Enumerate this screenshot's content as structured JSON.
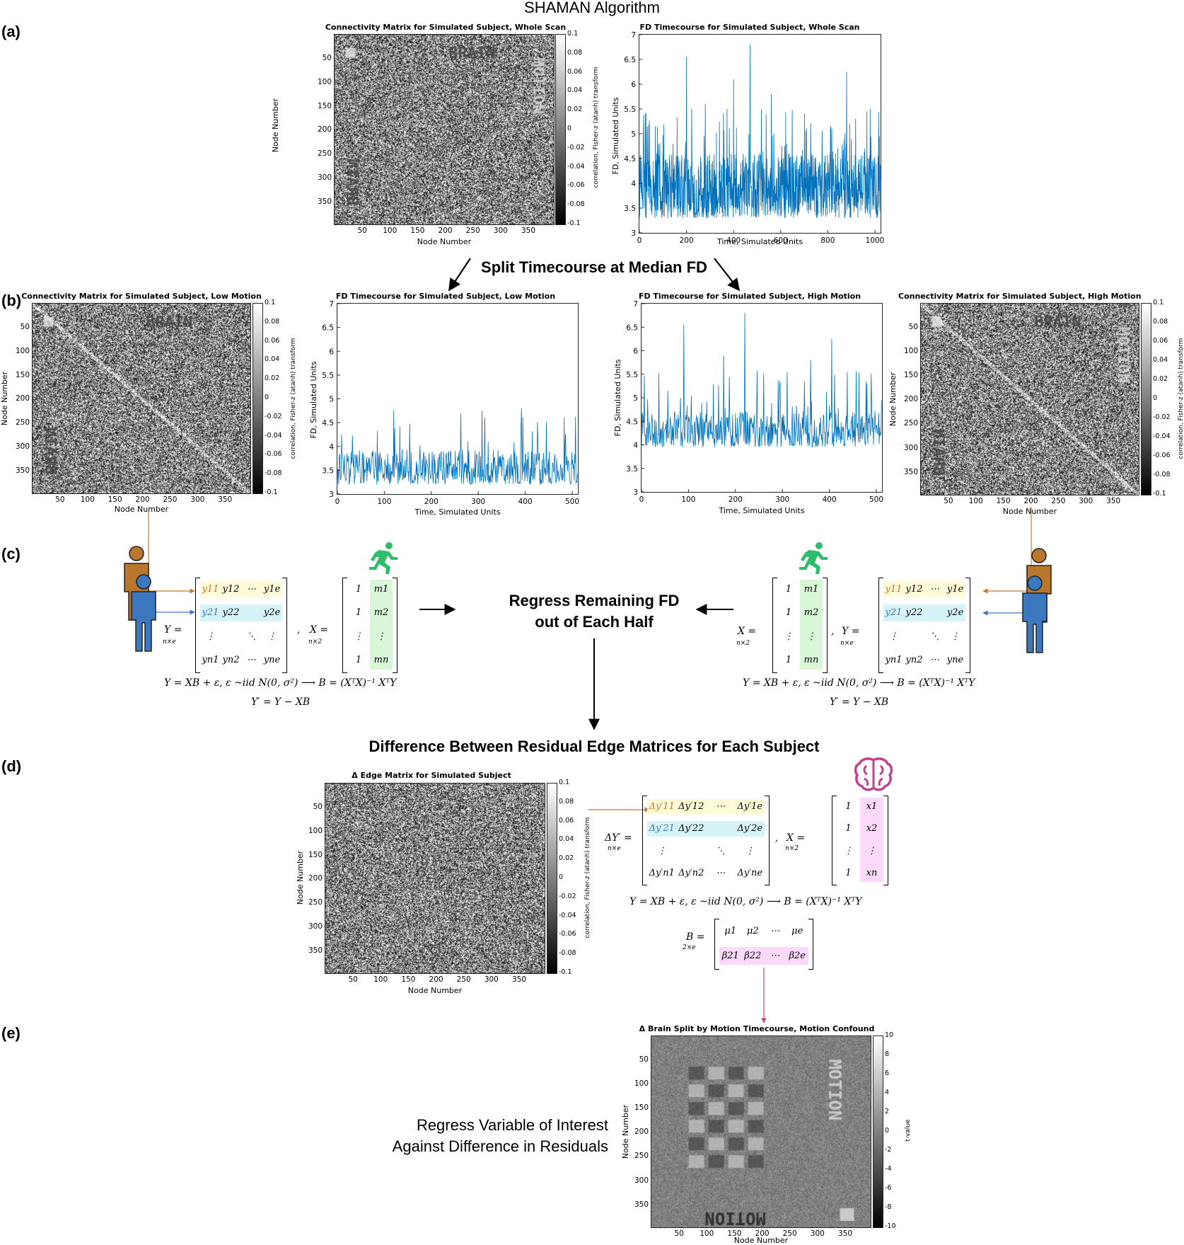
{
  "figure_title": "SHAMAN Algorithm",
  "panels": [
    "(a)",
    "(b)",
    "(c)",
    "(d)",
    "(e)"
  ],
  "steps": {
    "split": "Split Timecourse at Median FD",
    "regress_fd_1": "Regress Remaining FD",
    "regress_fd_2": "out of Each Half",
    "difference": "Difference Between Residual Edge Matrices for Each Subject",
    "regress_voi_1": "Regress Variable of Interest",
    "regress_voi_2": "Against Difference in Residuals"
  },
  "matrices": {
    "whole": {
      "title": "Connectivity Matrix for Simulated Subject, Whole Scan",
      "xlabel": "Node Number",
      "ylabel": "Node Number",
      "cbar_label": "correlation, Fisher-z (atanh) transform",
      "text_overlays": [
        "BRAIN",
        "BRAIN",
        "MOTION"
      ]
    },
    "low": {
      "title": "Connectivity Matrix for Simulated Subject, Low Motion",
      "xlabel": "Node Number",
      "ylabel": "Node Number",
      "cbar_label": "correlation, Fisher-z (atanh) transform",
      "text_overlays": [
        "BRAIN",
        "BRAIN"
      ]
    },
    "high": {
      "title": "Connectivity Matrix for Simulated Subject, High Motion",
      "xlabel": "Node Number",
      "ylabel": "Node Number",
      "cbar_label": "correlation, Fisher-z (atanh) transform",
      "text_overlays": [
        "BRAIN",
        "BRAIN",
        "MOTION"
      ]
    },
    "delta": {
      "title": "Δ Edge Matrix for Simulated Subject",
      "xlabel": "Node Number",
      "ylabel": "Node Number",
      "cbar_label": "correlation, Fisher-z (atanh) transform"
    },
    "result": {
      "title": "Δ Brain Split by Motion Timecourse, Motion Confound",
      "xlabel": "Node Number",
      "ylabel": "Node Number",
      "cbar_label": "t-value",
      "text_overlays": [
        "MOTION",
        "MOTION"
      ]
    }
  },
  "matrix_ticks": [
    "50",
    "100",
    "150",
    "200",
    "250",
    "300",
    "350"
  ],
  "cbar_ticks_corr": [
    "0.1",
    "0.08",
    "0.06",
    "0.04",
    "0.02",
    "0",
    "-0.02",
    "-0.04",
    "-0.06",
    "-0.08",
    "-0.1"
  ],
  "cbar_ticks_t": [
    "10",
    "8",
    "6",
    "4",
    "2",
    "0",
    "-2",
    "-4",
    "-6",
    "-8",
    "-10"
  ],
  "chart_data": [
    {
      "type": "line",
      "title": "FD Timecourse for Simulated Subject, Whole Scan",
      "xlabel": "Time, Simulated Units",
      "ylabel": "FD, Simulated Units",
      "xlim": [
        0,
        1024
      ],
      "ylim": [
        3,
        7
      ],
      "xticks": [
        0,
        200,
        400,
        600,
        800,
        1000
      ],
      "yticks": [
        3,
        3.5,
        4,
        4.5,
        5,
        5.5,
        6,
        6.5,
        7
      ],
      "series": [
        {
          "color": "#0072BD",
          "n_points": 1024,
          "baseline_range": [
            3.3,
            4.6
          ],
          "peaks": [
            [
              25,
              5.4
            ],
            [
              200,
              6.55
            ],
            [
              280,
              5.6
            ],
            [
              400,
              6.1
            ],
            [
              470,
              6.8
            ],
            [
              560,
              5.8
            ],
            [
              880,
              6.25
            ],
            [
              980,
              5.5
            ]
          ]
        }
      ]
    },
    {
      "type": "line",
      "title": "FD Timecourse for Simulated Subject, Low Motion",
      "xlabel": "Time, Simulated Units",
      "ylabel": "FD, Simulated Units",
      "xlim": [
        0,
        512
      ],
      "ylim": [
        3,
        7
      ],
      "xticks": [
        0,
        100,
        200,
        300,
        400,
        500
      ],
      "yticks": [
        3,
        3.5,
        4,
        4.5,
        5,
        5.5,
        6,
        6.5,
        7
      ],
      "series": [
        {
          "color": "#0072BD",
          "n_points": 512,
          "baseline_range": [
            3.2,
            3.95
          ],
          "peaks": []
        }
      ]
    },
    {
      "type": "line",
      "title": "FD Timecourse for Simulated Subject, High Motion",
      "xlabel": "Time, Simulated Units",
      "ylabel": "FD, Simulated Units",
      "xlim": [
        0,
        512
      ],
      "ylim": [
        3,
        7
      ],
      "xticks": [
        0,
        100,
        200,
        300,
        400,
        500
      ],
      "yticks": [
        3,
        3.5,
        4,
        4.5,
        5,
        5.5,
        6,
        6.5,
        7
      ],
      "series": [
        {
          "color": "#0072BD",
          "n_points": 512,
          "baseline_range": [
            3.95,
            4.7
          ],
          "peaks": [
            [
              90,
              6.55
            ],
            [
              175,
              5.9
            ],
            [
              220,
              6.8
            ],
            [
              310,
              5.55
            ],
            [
              360,
              5.8
            ],
            [
              405,
              6.25
            ],
            [
              480,
              5.3
            ]
          ]
        }
      ]
    }
  ],
  "equations": {
    "Y_def": "Y = ",
    "Y_sub": "n×e",
    "X_def": "X = ",
    "X_sub": "n×2",
    "model": "Y = XB + ε,  ε ~iid N(0, σ²) ⟶ B = (XᵀX)⁻¹ XᵀY",
    "resid": "Y′ = Y − XB",
    "dY_def": "ΔY′ = ",
    "B_def": "B = ",
    "B_sub": "2×e",
    "Y_rows": [
      [
        "y11",
        "y12",
        "⋯",
        "y1e"
      ],
      [
        "y21",
        "y22",
        "",
        "y2e"
      ],
      [
        "⋮",
        "",
        "⋱",
        "⋮"
      ],
      [
        "yn1",
        "yn2",
        "⋯",
        "yne"
      ]
    ],
    "X_rows_m": [
      [
        "1",
        "m1"
      ],
      [
        "1",
        "m2"
      ],
      [
        "⋮",
        "⋮"
      ],
      [
        "1",
        "mn"
      ]
    ],
    "X_rows_x": [
      [
        "1",
        "x1"
      ],
      [
        "1",
        "x2"
      ],
      [
        "⋮",
        "⋮"
      ],
      [
        "1",
        "xn"
      ]
    ],
    "dY_rows": [
      [
        "Δy′11",
        "Δy′12",
        "⋯",
        "Δy′1e"
      ],
      [
        "Δy′21",
        "Δy′22",
        "",
        "Δy′2e"
      ],
      [
        "⋮",
        "",
        "⋱",
        "⋮"
      ],
      [
        "Δy′n1",
        "Δy′n2",
        "⋯",
        "Δy′ne"
      ]
    ],
    "B_rows": [
      [
        "μ1",
        "μ2",
        "⋯",
        "μe"
      ],
      [
        "β21",
        "β22",
        "⋯",
        "β2e"
      ]
    ]
  },
  "colors": {
    "line": "#0072BD",
    "orange": "#c8782a",
    "blue": "#3b78bf",
    "green": "#2ebd6b",
    "magenta": "#c0418e",
    "yellow_hl": "#fdfbd8",
    "cyan_hl": "#d6f4f7",
    "green_hl": "#d7f7d7",
    "pink_hl": "#fbd9fb"
  },
  "icons": [
    "person-orange-icon",
    "person-blue-icon",
    "running-person-icon",
    "brain-icon"
  ]
}
